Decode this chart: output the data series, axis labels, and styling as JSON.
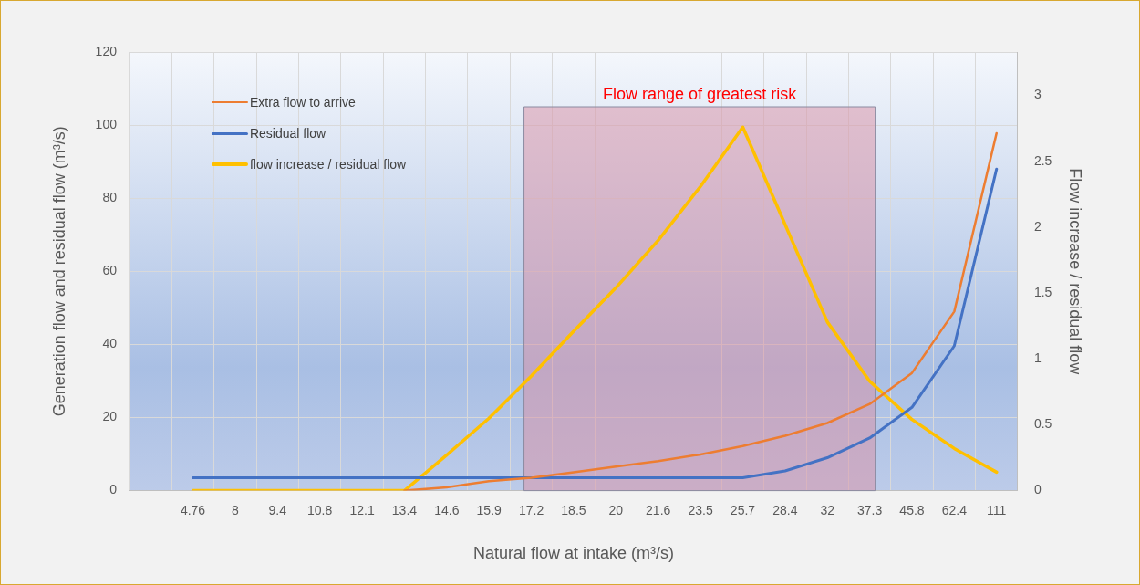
{
  "chart_data": {
    "type": "line",
    "xlabel": "Natural flow at intake (m³/s)",
    "ylabel": "Generation flow and residual flow (m³/s)",
    "y2label": "Flow increase / residual flow",
    "categories": [
      null,
      "4.76",
      "8",
      "9.4",
      "10.8",
      "12.1",
      "13.4",
      "14.6",
      "15.9",
      "17.2",
      "18.5",
      "20",
      "21.6",
      "23.5",
      "25.7",
      "28.4",
      "32",
      "37.3",
      "45.8",
      "62.4",
      "111"
    ],
    "series": [
      {
        "name": "Extra flow to arrive",
        "color": "#ed7d31",
        "values": [
          null,
          null,
          null,
          null,
          null,
          null,
          0,
          0.9,
          2.6,
          3.5,
          5.0,
          6.6,
          8.1,
          9.9,
          12.2,
          15.0,
          18.5,
          23.7,
          32.2,
          49.0,
          97.8
        ]
      },
      {
        "name": "Residual flow",
        "color": "#4472c4",
        "values": [
          null,
          3.5,
          3.5,
          3.5,
          3.5,
          3.5,
          3.5,
          3.5,
          3.5,
          3.5,
          3.5,
          3.5,
          3.5,
          3.5,
          3.5,
          5.4,
          9.0,
          14.4,
          22.8,
          39.6,
          88
        ]
      },
      {
        "name": "flow increase / residual flow",
        "color": "#ffc000",
        "axis": "y2",
        "values": [
          null,
          0,
          0,
          0,
          0,
          0,
          0,
          0.27,
          0.55,
          0.87,
          1.21,
          1.54,
          1.9,
          2.31,
          2.76,
          2.02,
          1.28,
          0.83,
          0.54,
          0.32,
          0.14
        ]
      }
    ],
    "ylim": [
      0,
      120
    ],
    "yticks": [
      0,
      20,
      40,
      60,
      80,
      100,
      120
    ],
    "y2lim": [
      0,
      3.33
    ],
    "y2ticks": [
      0,
      0.5,
      1,
      1.5,
      2,
      2.5,
      3
    ],
    "bands": [
      {
        "axis": "x",
        "from": "17.2",
        "to": "37.3",
        "label": "Flow range of greatest risk",
        "color": "#d98fa3"
      }
    ],
    "grid": true,
    "legend": "top left",
    "marker": "none",
    "line_style": "solid"
  }
}
